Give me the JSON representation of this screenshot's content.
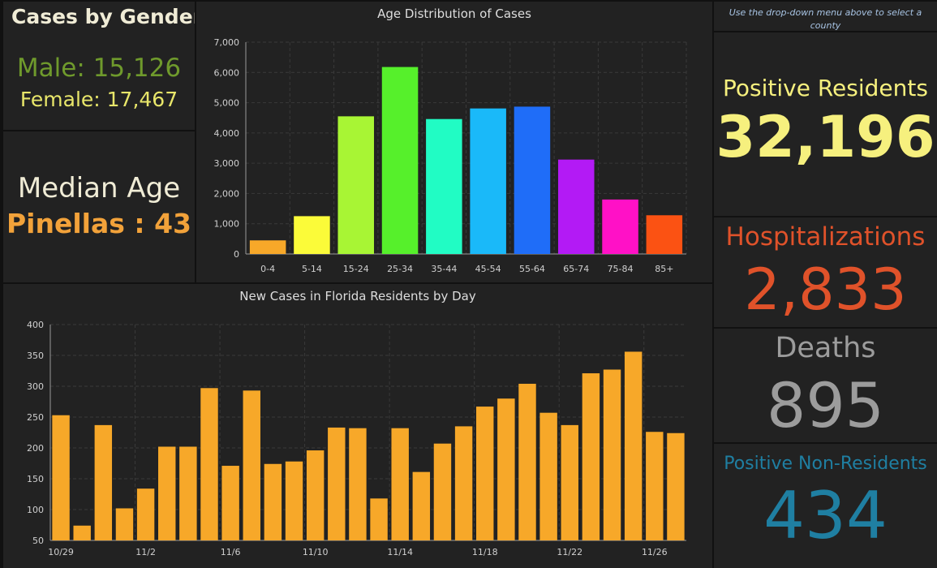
{
  "gender": {
    "title": "Cases by Gender",
    "male": "Male: 15,126",
    "female": "Female: 17,467"
  },
  "median_age": {
    "label": "Median Age",
    "value": "Pinellas : 43"
  },
  "instruction": "Use the drop-down menu above to select a county",
  "stats": {
    "positive_residents": {
      "label": "Positive Residents",
      "value": "32,196"
    },
    "hospitalizations": {
      "label": "Hospitalizations",
      "value": "2,833"
    },
    "deaths": {
      "label": "Deaths",
      "value": "895"
    },
    "positive_non_residents": {
      "label": "Positive Non-Residents",
      "value": "434"
    }
  },
  "colors": {
    "background": "#111111",
    "panel": "#222222",
    "male": "#6f9a2c",
    "female": "#e8e66a",
    "median": "#f2a23a",
    "positive": "#f6f07e",
    "hospitalizations": "#e0522a",
    "deaths": "#9c9c9c",
    "non_residents": "#1f7fa2",
    "daily_bar": "#f7a829"
  },
  "chart_data": [
    {
      "type": "bar",
      "title": "Age Distribution of Cases",
      "categories": [
        "0-4",
        "5-14",
        "15-24",
        "25-34",
        "35-44",
        "45-54",
        "55-64",
        "65-74",
        "75-84",
        "85+"
      ],
      "values": [
        450,
        1250,
        4550,
        6180,
        4460,
        4810,
        4870,
        3120,
        1800,
        1280
      ],
      "colors": [
        "#f7a829",
        "#fbfb39",
        "#a8f534",
        "#56f02b",
        "#21fcc4",
        "#1ab9f9",
        "#1f6df8",
        "#b31af5",
        "#ff11c6",
        "#fb5213"
      ],
      "ylim": [
        0,
        7000
      ],
      "yticks": [
        "0",
        "1,000",
        "2,000",
        "3,000",
        "4,000",
        "5,000",
        "6,000",
        "7,000"
      ],
      "grid": true
    },
    {
      "type": "bar",
      "title": "New Cases in Florida Residents by Day",
      "categories": [
        "10/29",
        "10/30",
        "10/31",
        "11/1",
        "11/2",
        "11/3",
        "11/4",
        "11/5",
        "11/6",
        "11/7",
        "11/8",
        "11/9",
        "11/10",
        "11/11",
        "11/12",
        "11/13",
        "11/14",
        "11/15",
        "11/16",
        "11/17",
        "11/18",
        "11/19",
        "11/20",
        "11/21",
        "11/22",
        "11/23",
        "11/24",
        "11/25",
        "11/26",
        "11/27"
      ],
      "values": [
        253,
        74,
        237,
        102,
        134,
        202,
        202,
        297,
        171,
        293,
        174,
        178,
        196,
        233,
        232,
        118,
        232,
        161,
        207,
        235,
        267,
        280,
        304,
        257,
        237,
        321,
        327,
        356,
        226,
        224
      ],
      "xticks": [
        "10/29",
        "11/2",
        "11/6",
        "11/10",
        "11/14",
        "11/18",
        "11/22",
        "11/26"
      ],
      "ylim": [
        50,
        400
      ],
      "yticks": [
        "50",
        "100",
        "150",
        "200",
        "250",
        "300",
        "350",
        "400"
      ],
      "grid": true
    }
  ]
}
